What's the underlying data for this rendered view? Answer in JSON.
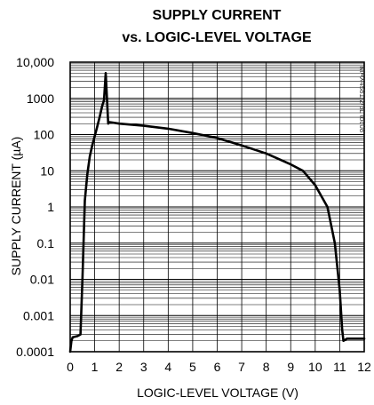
{
  "chart_data": {
    "type": "line",
    "title_line1": "SUPPLY CURRENT",
    "title_line2": "vs. LOGIC-LEVEL VOLTAGE",
    "xlabel": "LOGIC-LEVEL VOLTAGE (V)",
    "ylabel": "SUPPLY CURRENT (µA)",
    "figure_id": "MAX4581/2/3L toc08",
    "xscale": "linear",
    "yscale": "log",
    "xlim": [
      0,
      12
    ],
    "ylim": [
      0.0001,
      10000
    ],
    "x_ticks": [
      "0",
      "1",
      "2",
      "3",
      "4",
      "5",
      "6",
      "7",
      "8",
      "9",
      "10",
      "11",
      "12"
    ],
    "y_ticks": [
      "10,000",
      "1000",
      "100",
      "10",
      "1",
      "0.1",
      "0.01",
      "0.001",
      "0.0001"
    ],
    "grid": true,
    "series": [
      {
        "color": "#000000",
        "points": [
          [
            0.0,
            0.0001
          ],
          [
            0.05,
            0.0002
          ],
          [
            0.1,
            0.00025
          ],
          [
            0.3,
            0.00027
          ],
          [
            0.42,
            0.0003
          ],
          [
            0.5,
            0.01
          ],
          [
            0.6,
            1.5
          ],
          [
            0.7,
            8
          ],
          [
            0.8,
            25
          ],
          [
            0.9,
            50
          ],
          [
            1.0,
            90
          ],
          [
            1.1,
            160
          ],
          [
            1.2,
            300
          ],
          [
            1.3,
            600
          ],
          [
            1.38,
            900
          ],
          [
            1.45,
            5000
          ],
          [
            1.5,
            1000
          ],
          [
            1.55,
            200
          ],
          [
            1.6,
            220
          ],
          [
            2.0,
            200
          ],
          [
            3.0,
            175
          ],
          [
            4.0,
            145
          ],
          [
            5.0,
            110
          ],
          [
            6.0,
            80
          ],
          [
            7.0,
            50
          ],
          [
            8.0,
            30
          ],
          [
            9.0,
            15
          ],
          [
            9.5,
            10
          ],
          [
            10.0,
            4
          ],
          [
            10.5,
            1
          ],
          [
            10.8,
            0.1
          ],
          [
            11.0,
            0.005
          ],
          [
            11.1,
            0.0004
          ],
          [
            11.15,
            0.0002
          ],
          [
            11.3,
            0.00023
          ],
          [
            12.0,
            0.00023
          ]
        ]
      }
    ]
  }
}
